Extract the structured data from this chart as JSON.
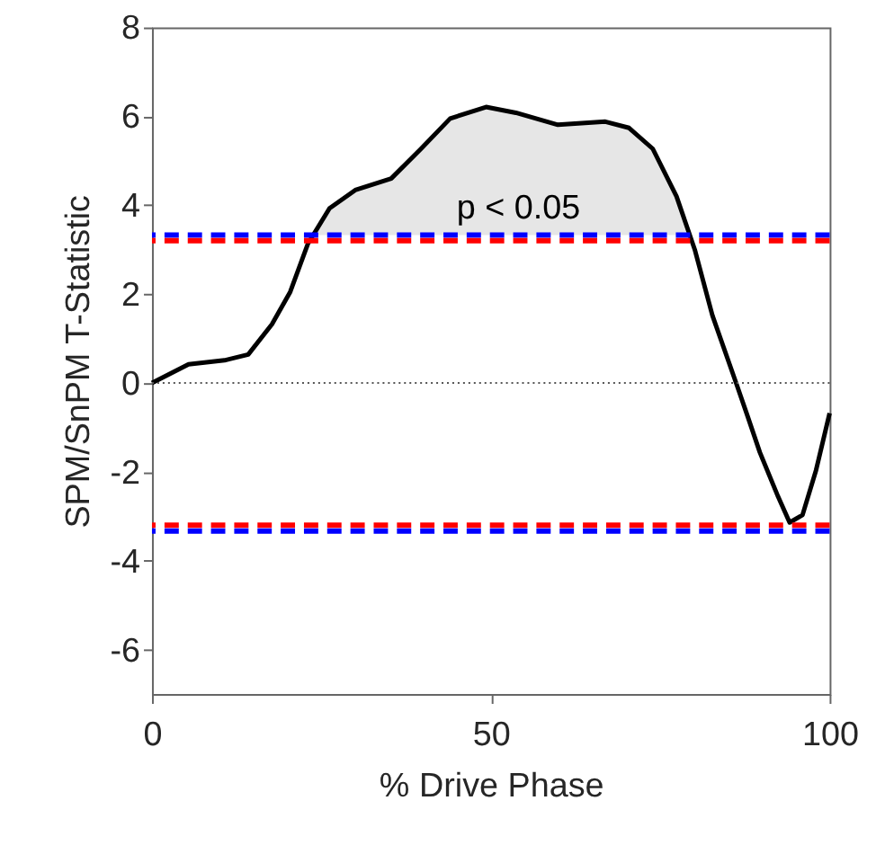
{
  "chart_data": {
    "type": "line",
    "xlabel": "% Drive Phase",
    "ylabel": "SPM/SnPM T-Statistic",
    "xlim": [
      0,
      100
    ],
    "xticks": [
      0,
      50,
      100
    ],
    "ylim": [
      -7,
      8
    ],
    "yticks": [
      -6,
      -4,
      -2,
      0,
      2,
      4,
      6,
      8
    ],
    "grid": false,
    "line_style": "solid",
    "marker": "none",
    "series": [
      {
        "type": "area",
        "color": "#e6e6e6",
        "x": [
          23.8,
          26.2,
          30,
          35.3,
          39.7,
          44,
          49.3,
          53.7,
          59.9,
          66.9,
          70.4,
          73.9,
          77.4,
          79.4
        ],
        "values": [
          3.33,
          3.93,
          4.34,
          4.6,
          5.27,
          5.95,
          6.21,
          6.08,
          5.81,
          5.88,
          5.74,
          5.27,
          4.2,
          3.33
        ]
      },
      {
        "color": "#000000",
        "x": [
          0,
          5.4,
          10.7,
          14.2,
          17.7,
          20.4,
          23,
          26.2,
          30,
          35.3,
          39.7,
          44,
          49.3,
          53.7,
          59.9,
          66.9,
          70.4,
          73.9,
          77.4,
          80.1,
          82.7,
          86.2,
          87.9,
          89.7,
          92.4,
          94.1,
          96,
          98,
          100
        ],
        "values": [
          0,
          0.42,
          0.51,
          0.64,
          1.32,
          2.05,
          3.13,
          3.93,
          4.34,
          4.6,
          5.27,
          5.95,
          6.21,
          6.08,
          5.81,
          5.88,
          5.74,
          5.27,
          4.2,
          3.0,
          1.52,
          0,
          -0.75,
          -1.56,
          -2.56,
          -3.14,
          -2.97,
          -1.96,
          -0.68
        ]
      }
    ],
    "ref_lines": [
      {
        "axis": "y",
        "value": 0,
        "color": "#555555",
        "line_style": "dotted"
      },
      {
        "axis": "y",
        "value": 3.33,
        "color": "#0000ff",
        "line_style": "dashed"
      },
      {
        "axis": "y",
        "value": 3.2,
        "color": "#ff0000",
        "line_style": "dashed"
      },
      {
        "axis": "y",
        "value": -3.2,
        "color": "#ff0000",
        "line_style": "dashed"
      },
      {
        "axis": "y",
        "value": -3.33,
        "color": "#0000ff",
        "line_style": "dashed"
      }
    ],
    "annotations": [
      "p < 0.05"
    ]
  }
}
